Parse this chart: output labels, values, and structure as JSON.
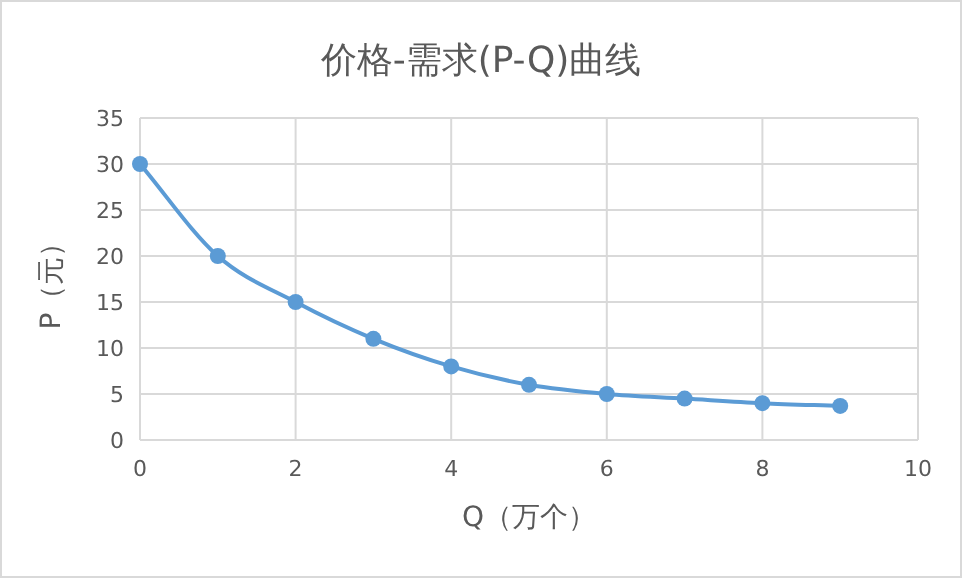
{
  "chart_data": {
    "type": "line",
    "title": "价格-需求(P-Q)曲线",
    "xlabel": "Q（万个）",
    "ylabel": "P（元）",
    "x": [
      0,
      1,
      2,
      3,
      4,
      5,
      6,
      7,
      8,
      9
    ],
    "series": [
      {
        "color": "#5b9bd5",
        "values": [
          30,
          20,
          15,
          11,
          8,
          6,
          5,
          4.5,
          4,
          3.7
        ]
      }
    ],
    "xlim": [
      0,
      10
    ],
    "xticks": [
      0,
      2,
      4,
      6,
      8,
      10
    ],
    "ylim": [
      0,
      35
    ],
    "yticks": [
      0,
      5,
      10,
      15,
      20,
      25,
      30,
      35
    ],
    "grid": true,
    "marker": "circle",
    "line_style": "solid"
  }
}
